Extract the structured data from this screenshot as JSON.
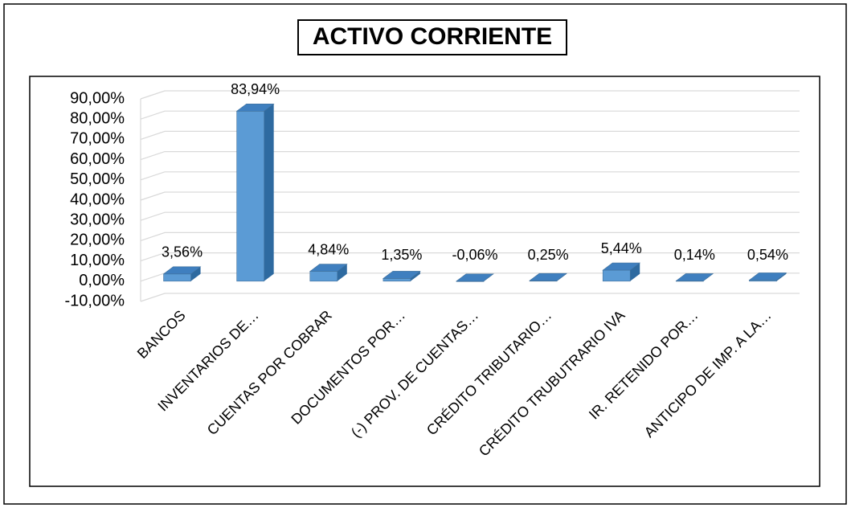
{
  "chart_data": {
    "type": "bar3d",
    "title": "ACTIVO CORRIENTE",
    "categories": [
      "BANCOS",
      "INVENTARIOS DE…",
      "CUENTAS POR COBRAR",
      "DOCUMENTOS POR…",
      "(-) PROV. DE CUENTAS…",
      "CRÉDITO TRIBUTARIO…",
      "CRÉDITO TRUBUTRARIO IVA",
      "IR. RETENIDO POR…",
      "ANTICIPO DE IMP. A LA…"
    ],
    "values": [
      3.56,
      83.94,
      4.84,
      1.35,
      -0.06,
      0.25,
      5.44,
      0.14,
      0.54
    ],
    "value_labels": [
      "3,56%",
      "83,94%",
      "4,84%",
      "1,35%",
      "-0,06%",
      "0,25%",
      "5,44%",
      "0,14%",
      "0,54%"
    ],
    "color": "#5b9bd5",
    "ylim": [
      -10,
      90
    ],
    "yticks": [
      {
        "value": -10,
        "label": "-10,00%"
      },
      {
        "value": 0,
        "label": "0,00%"
      },
      {
        "value": 10,
        "label": "10,00%"
      },
      {
        "value": 20,
        "label": "20,00%"
      },
      {
        "value": 30,
        "label": "30,00%"
      },
      {
        "value": 40,
        "label": "40,00%"
      },
      {
        "value": 50,
        "label": "50,00%"
      },
      {
        "value": 60,
        "label": "60,00%"
      },
      {
        "value": 70,
        "label": "70,00%"
      },
      {
        "value": 80,
        "label": "80,00%"
      },
      {
        "value": 90,
        "label": "90,00%"
      }
    ],
    "grid": true
  }
}
